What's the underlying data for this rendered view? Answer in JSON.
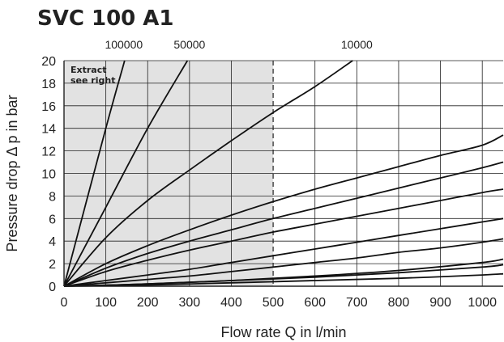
{
  "chart_data": {
    "type": "line",
    "title": "SVC 100 A1",
    "xlabel": "Flow rate Q in l/min",
    "ylabel": "Pressure drop Δ p in bar",
    "xlim": [
      0,
      1050
    ],
    "ylim": [
      0,
      20
    ],
    "x_ticks": [
      0,
      100,
      200,
      300,
      400,
      500,
      600,
      700,
      800,
      900,
      1000
    ],
    "y_ticks": [
      0,
      2,
      4,
      6,
      8,
      10,
      12,
      14,
      16,
      18,
      20
    ],
    "grid": true,
    "shaded_region": {
      "x_from": 0,
      "x_to": 500,
      "color": "#e2e2e2",
      "boundary_style": "dashed"
    },
    "annotation": {
      "line1": "Extract",
      "line2": "see right"
    },
    "top_labels": [
      {
        "text": "100000",
        "x": 143
      },
      {
        "text": "50000",
        "x": 300
      },
      {
        "text": "10000",
        "x": 700
      }
    ],
    "series": [
      {
        "x": [
          0,
          100,
          145
        ],
        "y": [
          0,
          14.0,
          20
        ]
      },
      {
        "x": [
          0,
          100,
          200,
          295
        ],
        "y": [
          0,
          7.0,
          14.0,
          20
        ]
      },
      {
        "x": [
          0,
          100,
          200,
          300,
          400,
          500,
          600,
          690
        ],
        "y": [
          0,
          4.3,
          7.6,
          10.3,
          12.9,
          15.4,
          17.7,
          20
        ]
      },
      {
        "x": [
          0,
          100,
          200,
          300,
          400,
          500,
          600,
          700,
          800,
          900,
          1000,
          1050
        ],
        "y": [
          0,
          2.0,
          3.6,
          5.0,
          6.3,
          7.5,
          8.6,
          9.6,
          10.6,
          11.6,
          12.5,
          13.4
        ]
      },
      {
        "x": [
          0,
          100,
          200,
          300,
          400,
          500,
          600,
          700,
          800,
          900,
          1000,
          1050
        ],
        "y": [
          0,
          1.6,
          2.9,
          4.0,
          5.0,
          6.0,
          6.9,
          7.8,
          8.7,
          9.6,
          10.5,
          11.0
        ]
      },
      {
        "x": [
          0,
          100,
          200,
          300,
          400,
          500,
          600,
          700,
          800,
          900,
          1000,
          1050
        ],
        "y": [
          0,
          1.3,
          2.3,
          3.2,
          4.0,
          4.8,
          5.5,
          6.2,
          6.9,
          7.6,
          8.3,
          8.6
        ]
      },
      {
        "x": [
          0,
          100,
          200,
          300,
          400,
          500,
          600,
          700,
          800,
          900,
          1000,
          1050
        ],
        "y": [
          0,
          0.5,
          1.0,
          1.5,
          2.1,
          2.7,
          3.3,
          3.9,
          4.5,
          5.1,
          5.7,
          6.0
        ]
      },
      {
        "x": [
          0,
          100,
          200,
          300,
          400,
          500,
          600,
          700,
          800,
          900,
          1000,
          1050
        ],
        "y": [
          0,
          0.3,
          0.6,
          0.9,
          1.3,
          1.7,
          2.1,
          2.5,
          3.0,
          3.4,
          3.9,
          4.2
        ]
      },
      {
        "x": [
          0,
          200,
          400,
          600,
          800,
          1000,
          1050
        ],
        "y": [
          0,
          0.2,
          0.5,
          0.9,
          1.4,
          2.1,
          2.4
        ]
      },
      {
        "x": [
          0,
          200,
          400,
          600,
          800,
          1000,
          1050
        ],
        "y": [
          0,
          0.2,
          0.5,
          0.8,
          1.2,
          1.7,
          1.9
        ]
      },
      {
        "x": [
          0,
          200,
          400,
          600,
          800,
          1000,
          1050
        ],
        "y": [
          0,
          0.1,
          0.3,
          0.5,
          0.7,
          1.0,
          1.1
        ]
      }
    ]
  }
}
